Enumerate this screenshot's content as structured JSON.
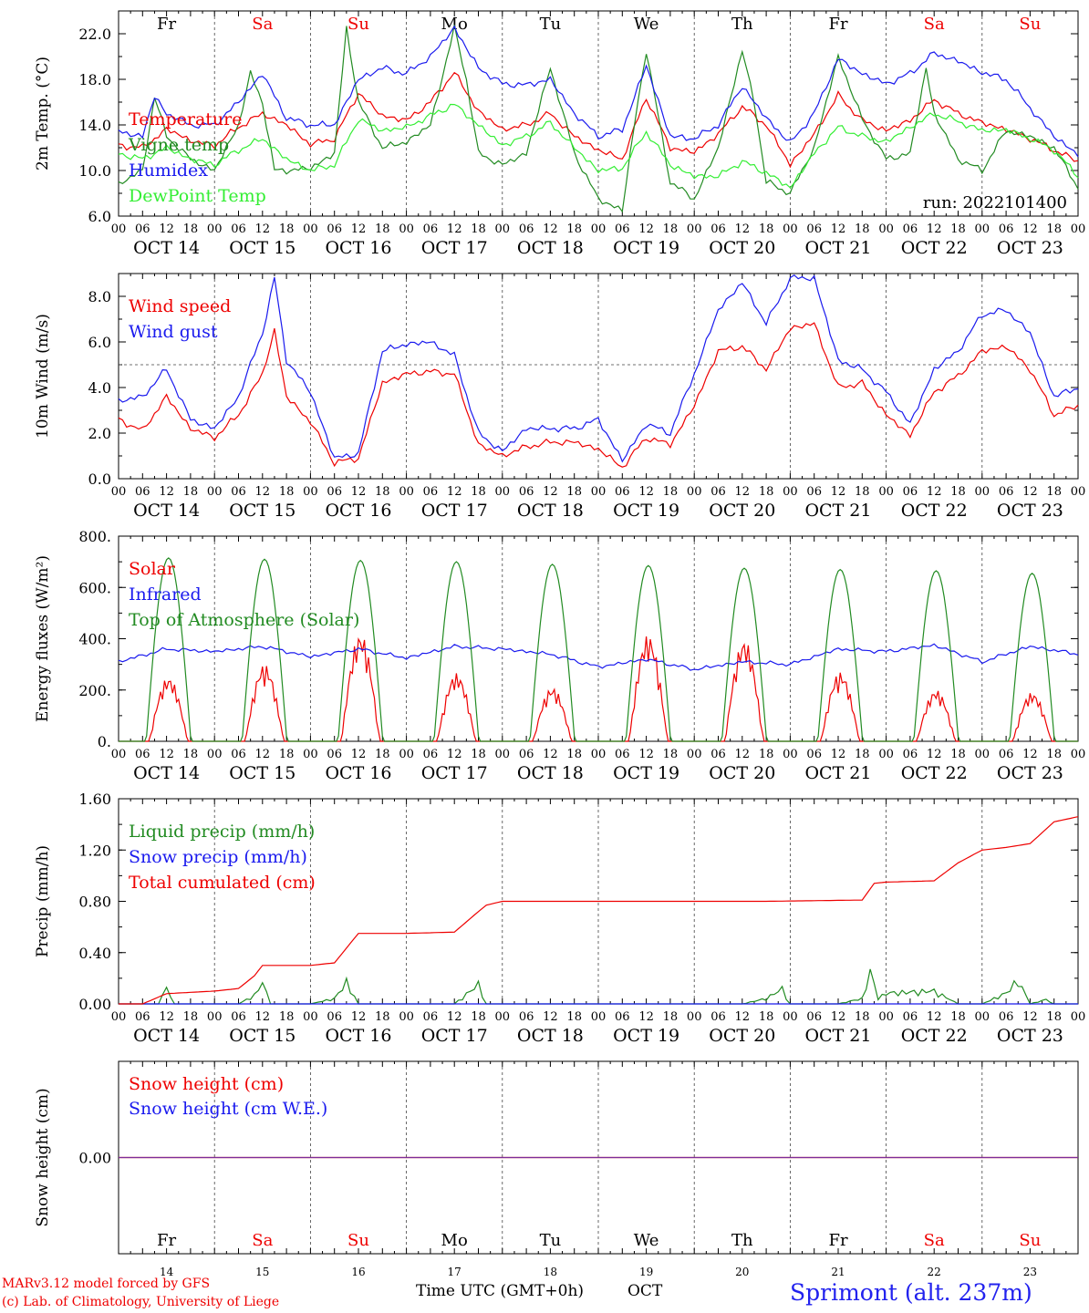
{
  "meteogram": {
    "run_label": "run: 2022101400",
    "day_names": [
      "Fr",
      "Sa",
      "Su",
      "Mo",
      "Tu",
      "We",
      "Th",
      "Fr",
      "Sa",
      "Su"
    ],
    "weekend_days": [
      1,
      2,
      8,
      9
    ],
    "date_labels": [
      "OCT 14",
      "OCT 15",
      "OCT 16",
      "OCT 17",
      "OCT 18",
      "OCT 19",
      "OCT 20",
      "OCT 21",
      "OCT 22",
      "OCT 23"
    ],
    "hour_ticks": [
      "00",
      "06",
      "12",
      "18"
    ],
    "day_numbers": [
      "14",
      "15",
      "16",
      "17",
      "18",
      "19",
      "20",
      "21",
      "22",
      "23"
    ],
    "xlabel": "Time UTC (GMT+0h)",
    "xlabel_suffix": "OCT",
    "credit_line1": "MARv3.12 model forced by GFS",
    "credit_line2": "(c) Lab. of Climatology, University of Liege",
    "station": "Sprimont (alt. 237m)",
    "colors": {
      "red": "#ee0000",
      "green": "#228b22",
      "blue": "#1a1aee",
      "lightgreen": "#33ee33",
      "purple": "#7a2d9a"
    }
  },
  "chart_data": [
    {
      "type": "line",
      "ylabel": "2m Temp. (°C)",
      "ylim": [
        6,
        24
      ],
      "yticks": [
        "6.0",
        "10.0",
        "14.0",
        "18.0",
        "22.0"
      ],
      "x_unit": "hours from OCT 14 00 UTC",
      "series": [
        {
          "name": "Temperature",
          "color": "#ee0000",
          "x": [
            0,
            6,
            12,
            15,
            18,
            24,
            30,
            36,
            42,
            48,
            54,
            60,
            66,
            72,
            78,
            84,
            90,
            96,
            102,
            108,
            114,
            120,
            126,
            132,
            138,
            144,
            150,
            156,
            162,
            168,
            174,
            180,
            186,
            192,
            198,
            204,
            210,
            216,
            222,
            228,
            234,
            240
          ],
          "values": [
            12.2,
            12.0,
            13.6,
            13.2,
            12.6,
            12.2,
            13.8,
            15.0,
            14.0,
            12.3,
            12.8,
            16.8,
            14.8,
            14.4,
            16.0,
            18.6,
            15.2,
            13.6,
            14.0,
            15.0,
            13.0,
            11.8,
            11.0,
            16.4,
            12.0,
            11.6,
            13.2,
            15.6,
            14.0,
            10.5,
            13.2,
            16.6,
            14.4,
            13.5,
            14.4,
            16.2,
            15.0,
            14.2,
            13.6,
            12.8,
            11.8,
            10.8
          ]
        },
        {
          "name": "Vigne temp",
          "color": "#228b22",
          "x": [
            0,
            6,
            9,
            12,
            18,
            24,
            30,
            33,
            36,
            39,
            42,
            48,
            54,
            57,
            60,
            66,
            72,
            78,
            84,
            87,
            90,
            96,
            102,
            108,
            114,
            120,
            126,
            129,
            132,
            138,
            144,
            150,
            156,
            159,
            162,
            168,
            174,
            180,
            186,
            192,
            198,
            202,
            204,
            210,
            216,
            222,
            228,
            234,
            240
          ],
          "values": [
            8.8,
            10.0,
            16.5,
            13.0,
            11.0,
            10.0,
            14.0,
            18.5,
            16.0,
            10.0,
            10.0,
            10.2,
            11.5,
            22.5,
            16.0,
            12.0,
            12.5,
            14.0,
            22.5,
            18.0,
            11.5,
            10.5,
            11.5,
            19.0,
            11.5,
            7.5,
            6.5,
            14.0,
            20.5,
            9.0,
            7.5,
            12.0,
            20.5,
            16.0,
            9.0,
            8.0,
            12.0,
            20.0,
            14.5,
            11.0,
            11.5,
            19.0,
            15.0,
            11.0,
            10.0,
            13.5,
            13.0,
            12.0,
            8.5
          ]
        },
        {
          "name": "Humidex",
          "color": "#1a1aee",
          "x": [
            0,
            6,
            9,
            12,
            18,
            24,
            30,
            36,
            42,
            48,
            54,
            60,
            66,
            72,
            78,
            84,
            90,
            96,
            102,
            108,
            114,
            120,
            126,
            132,
            138,
            144,
            150,
            156,
            162,
            168,
            174,
            180,
            186,
            192,
            198,
            204,
            210,
            216,
            222,
            228,
            234,
            240
          ],
          "values": [
            13.4,
            13.0,
            16.5,
            15.0,
            14.0,
            14.0,
            16.0,
            18.5,
            14.6,
            14.0,
            14.0,
            18.0,
            19.0,
            18.5,
            20.0,
            22.5,
            19.0,
            17.6,
            17.5,
            18.0,
            15.0,
            13.0,
            13.6,
            19.2,
            13.0,
            12.8,
            14.0,
            17.4,
            14.6,
            12.4,
            15.0,
            19.8,
            18.5,
            17.6,
            18.5,
            20.3,
            19.6,
            18.6,
            18.0,
            15.5,
            13.0,
            11.4
          ]
        },
        {
          "name": "DewPoint Temp",
          "color": "#33ee33",
          "x": [
            0,
            6,
            12,
            18,
            24,
            30,
            36,
            42,
            48,
            54,
            60,
            66,
            72,
            78,
            84,
            90,
            96,
            102,
            108,
            114,
            120,
            126,
            132,
            138,
            144,
            150,
            156,
            162,
            168,
            174,
            180,
            186,
            192,
            198,
            204,
            210,
            216,
            222,
            228,
            234,
            240
          ],
          "values": [
            11.5,
            11.0,
            12.0,
            11.0,
            10.5,
            11.8,
            12.8,
            11.0,
            10.0,
            10.5,
            14.5,
            13.5,
            13.8,
            14.8,
            15.8,
            14.0,
            12.2,
            13.0,
            14.2,
            12.0,
            10.0,
            10.2,
            13.4,
            10.5,
            9.5,
            9.5,
            10.8,
            9.8,
            8.5,
            11.5,
            13.8,
            13.0,
            12.5,
            13.8,
            15.0,
            14.3,
            13.5,
            13.6,
            12.8,
            11.8,
            9.5
          ]
        }
      ]
    },
    {
      "type": "line",
      "ylabel": "10m Wind (m/s)",
      "ylim": [
        0,
        9
      ],
      "yticks": [
        "0.0",
        "2.0",
        "4.0",
        "6.0",
        "8.0"
      ],
      "reference_line": 5.0,
      "series": [
        {
          "name": "Wind speed",
          "color": "#ee0000",
          "x": [
            0,
            6,
            12,
            18,
            24,
            30,
            36,
            39,
            42,
            48,
            54,
            60,
            66,
            72,
            78,
            84,
            90,
            96,
            102,
            108,
            114,
            120,
            126,
            132,
            138,
            144,
            150,
            156,
            162,
            168,
            174,
            180,
            186,
            192,
            198,
            204,
            210,
            216,
            222,
            228,
            234,
            240
          ],
          "values": [
            2.6,
            2.1,
            3.6,
            2.2,
            1.8,
            2.8,
            4.6,
            6.5,
            3.6,
            2.5,
            0.7,
            0.9,
            4.2,
            4.6,
            4.7,
            4.6,
            1.5,
            1.0,
            1.4,
            1.6,
            1.6,
            1.3,
            0.5,
            1.8,
            1.5,
            3.2,
            5.6,
            5.8,
            4.8,
            6.6,
            6.8,
            4.0,
            4.2,
            2.8,
            1.9,
            3.8,
            4.5,
            5.6,
            5.8,
            4.8,
            2.8,
            3.2
          ]
        },
        {
          "name": "Wind gust",
          "color": "#1a1aee",
          "x": [
            0,
            6,
            12,
            18,
            24,
            30,
            36,
            39,
            42,
            48,
            54,
            60,
            66,
            72,
            78,
            84,
            90,
            96,
            102,
            108,
            114,
            120,
            126,
            132,
            138,
            144,
            150,
            156,
            162,
            168,
            174,
            180,
            186,
            192,
            198,
            204,
            210,
            216,
            222,
            228,
            234,
            240
          ],
          "values": [
            3.4,
            3.6,
            4.8,
            2.6,
            2.2,
            3.6,
            6.4,
            8.8,
            5.2,
            3.8,
            0.9,
            1.1,
            5.6,
            5.9,
            6.0,
            5.4,
            2.0,
            1.2,
            2.2,
            2.2,
            2.2,
            2.6,
            0.8,
            2.4,
            2.0,
            4.6,
            7.4,
            8.6,
            6.8,
            8.8,
            8.8,
            5.2,
            4.8,
            3.8,
            2.4,
            4.8,
            5.6,
            7.2,
            7.4,
            6.4,
            3.6,
            4.0
          ]
        }
      ]
    },
    {
      "type": "line",
      "ylabel": "Energy fluxes (W/m²)",
      "ylim": [
        0,
        800
      ],
      "yticks": [
        "0.",
        "200.",
        "400.",
        "600.",
        "800."
      ],
      "daily_peaks": {
        "Top of Atmosphere (Solar)": [
          715,
          710,
          705,
          700,
          690,
          685,
          675,
          670,
          665,
          655
        ],
        "Solar": [
          250,
          300,
          420,
          265,
          210,
          415,
          395,
          270,
          200,
          190
        ]
      },
      "series": [
        {
          "name": "Solar",
          "color": "#ee0000"
        },
        {
          "name": "Infrared",
          "color": "#1a1aee",
          "x": [
            0,
            12,
            24,
            36,
            48,
            60,
            72,
            84,
            96,
            108,
            120,
            132,
            144,
            156,
            168,
            180,
            192,
            204,
            216,
            228,
            240
          ],
          "values": [
            310,
            360,
            350,
            370,
            330,
            360,
            325,
            370,
            360,
            340,
            290,
            320,
            280,
            310,
            300,
            360,
            350,
            375,
            310,
            370,
            340
          ]
        },
        {
          "name": "Top of Atmosphere (Solar)",
          "color": "#228b22"
        }
      ]
    },
    {
      "type": "line",
      "ylabel": "Precip (mm/h)",
      "ylim": [
        0,
        1.6
      ],
      "yticks": [
        "0.00",
        "0.40",
        "0.80",
        "1.20",
        "1.60"
      ],
      "series": [
        {
          "name": "Liquid precip (mm/h)",
          "color": "#228b22",
          "x": [
            0,
            10,
            12,
            14,
            30,
            34,
            36,
            38,
            48,
            54,
            57,
            60,
            66,
            84,
            90,
            92,
            96,
            138,
            141,
            144,
            156,
            162,
            166,
            168,
            180,
            186,
            188,
            190,
            192,
            204,
            210,
            216,
            222,
            225,
            228,
            232,
            234,
            240
          ],
          "values": [
            0,
            0,
            0.15,
            0,
            0,
            0.08,
            0.2,
            0,
            0,
            0.05,
            0.2,
            0,
            0,
            0,
            0.18,
            0,
            0,
            0,
            0,
            0,
            0,
            0.05,
            0.14,
            0,
            0,
            0.05,
            0.3,
            0.05,
            0.1,
            0.12,
            0,
            0,
            0.1,
            0.22,
            0,
            0.04,
            0,
            0
          ]
        },
        {
          "name": "Snow precip (mm/h)",
          "color": "#1a1aee",
          "x": [
            0,
            240
          ],
          "values": [
            0,
            0
          ]
        },
        {
          "name": "Total cumulated (cm)",
          "color": "#ee0000",
          "x": [
            0,
            6,
            12,
            24,
            30,
            34,
            36,
            48,
            54,
            60,
            72,
            84,
            90,
            92,
            96,
            120,
            144,
            162,
            186,
            189,
            192,
            204,
            210,
            216,
            222,
            228,
            234,
            240
          ],
          "values": [
            0,
            0,
            0.08,
            0.1,
            0.12,
            0.22,
            0.3,
            0.3,
            0.32,
            0.55,
            0.55,
            0.56,
            0.72,
            0.77,
            0.8,
            0.8,
            0.8,
            0.8,
            0.81,
            0.94,
            0.95,
            0.96,
            1.1,
            1.2,
            1.22,
            1.25,
            1.42,
            1.46
          ]
        }
      ]
    },
    {
      "type": "line",
      "ylabel": "Snow height (cm)",
      "ylim": [
        -1,
        1
      ],
      "yticks": [
        "0.00"
      ],
      "series": [
        {
          "name": "Snow height (cm)",
          "color": "#ee0000",
          "x": [
            0,
            240
          ],
          "values": [
            0,
            0
          ]
        },
        {
          "name": "Snow height (cm W.E.)",
          "color": "#1a1aee",
          "x": [
            0,
            240
          ],
          "values": [
            0,
            0
          ]
        }
      ]
    }
  ]
}
